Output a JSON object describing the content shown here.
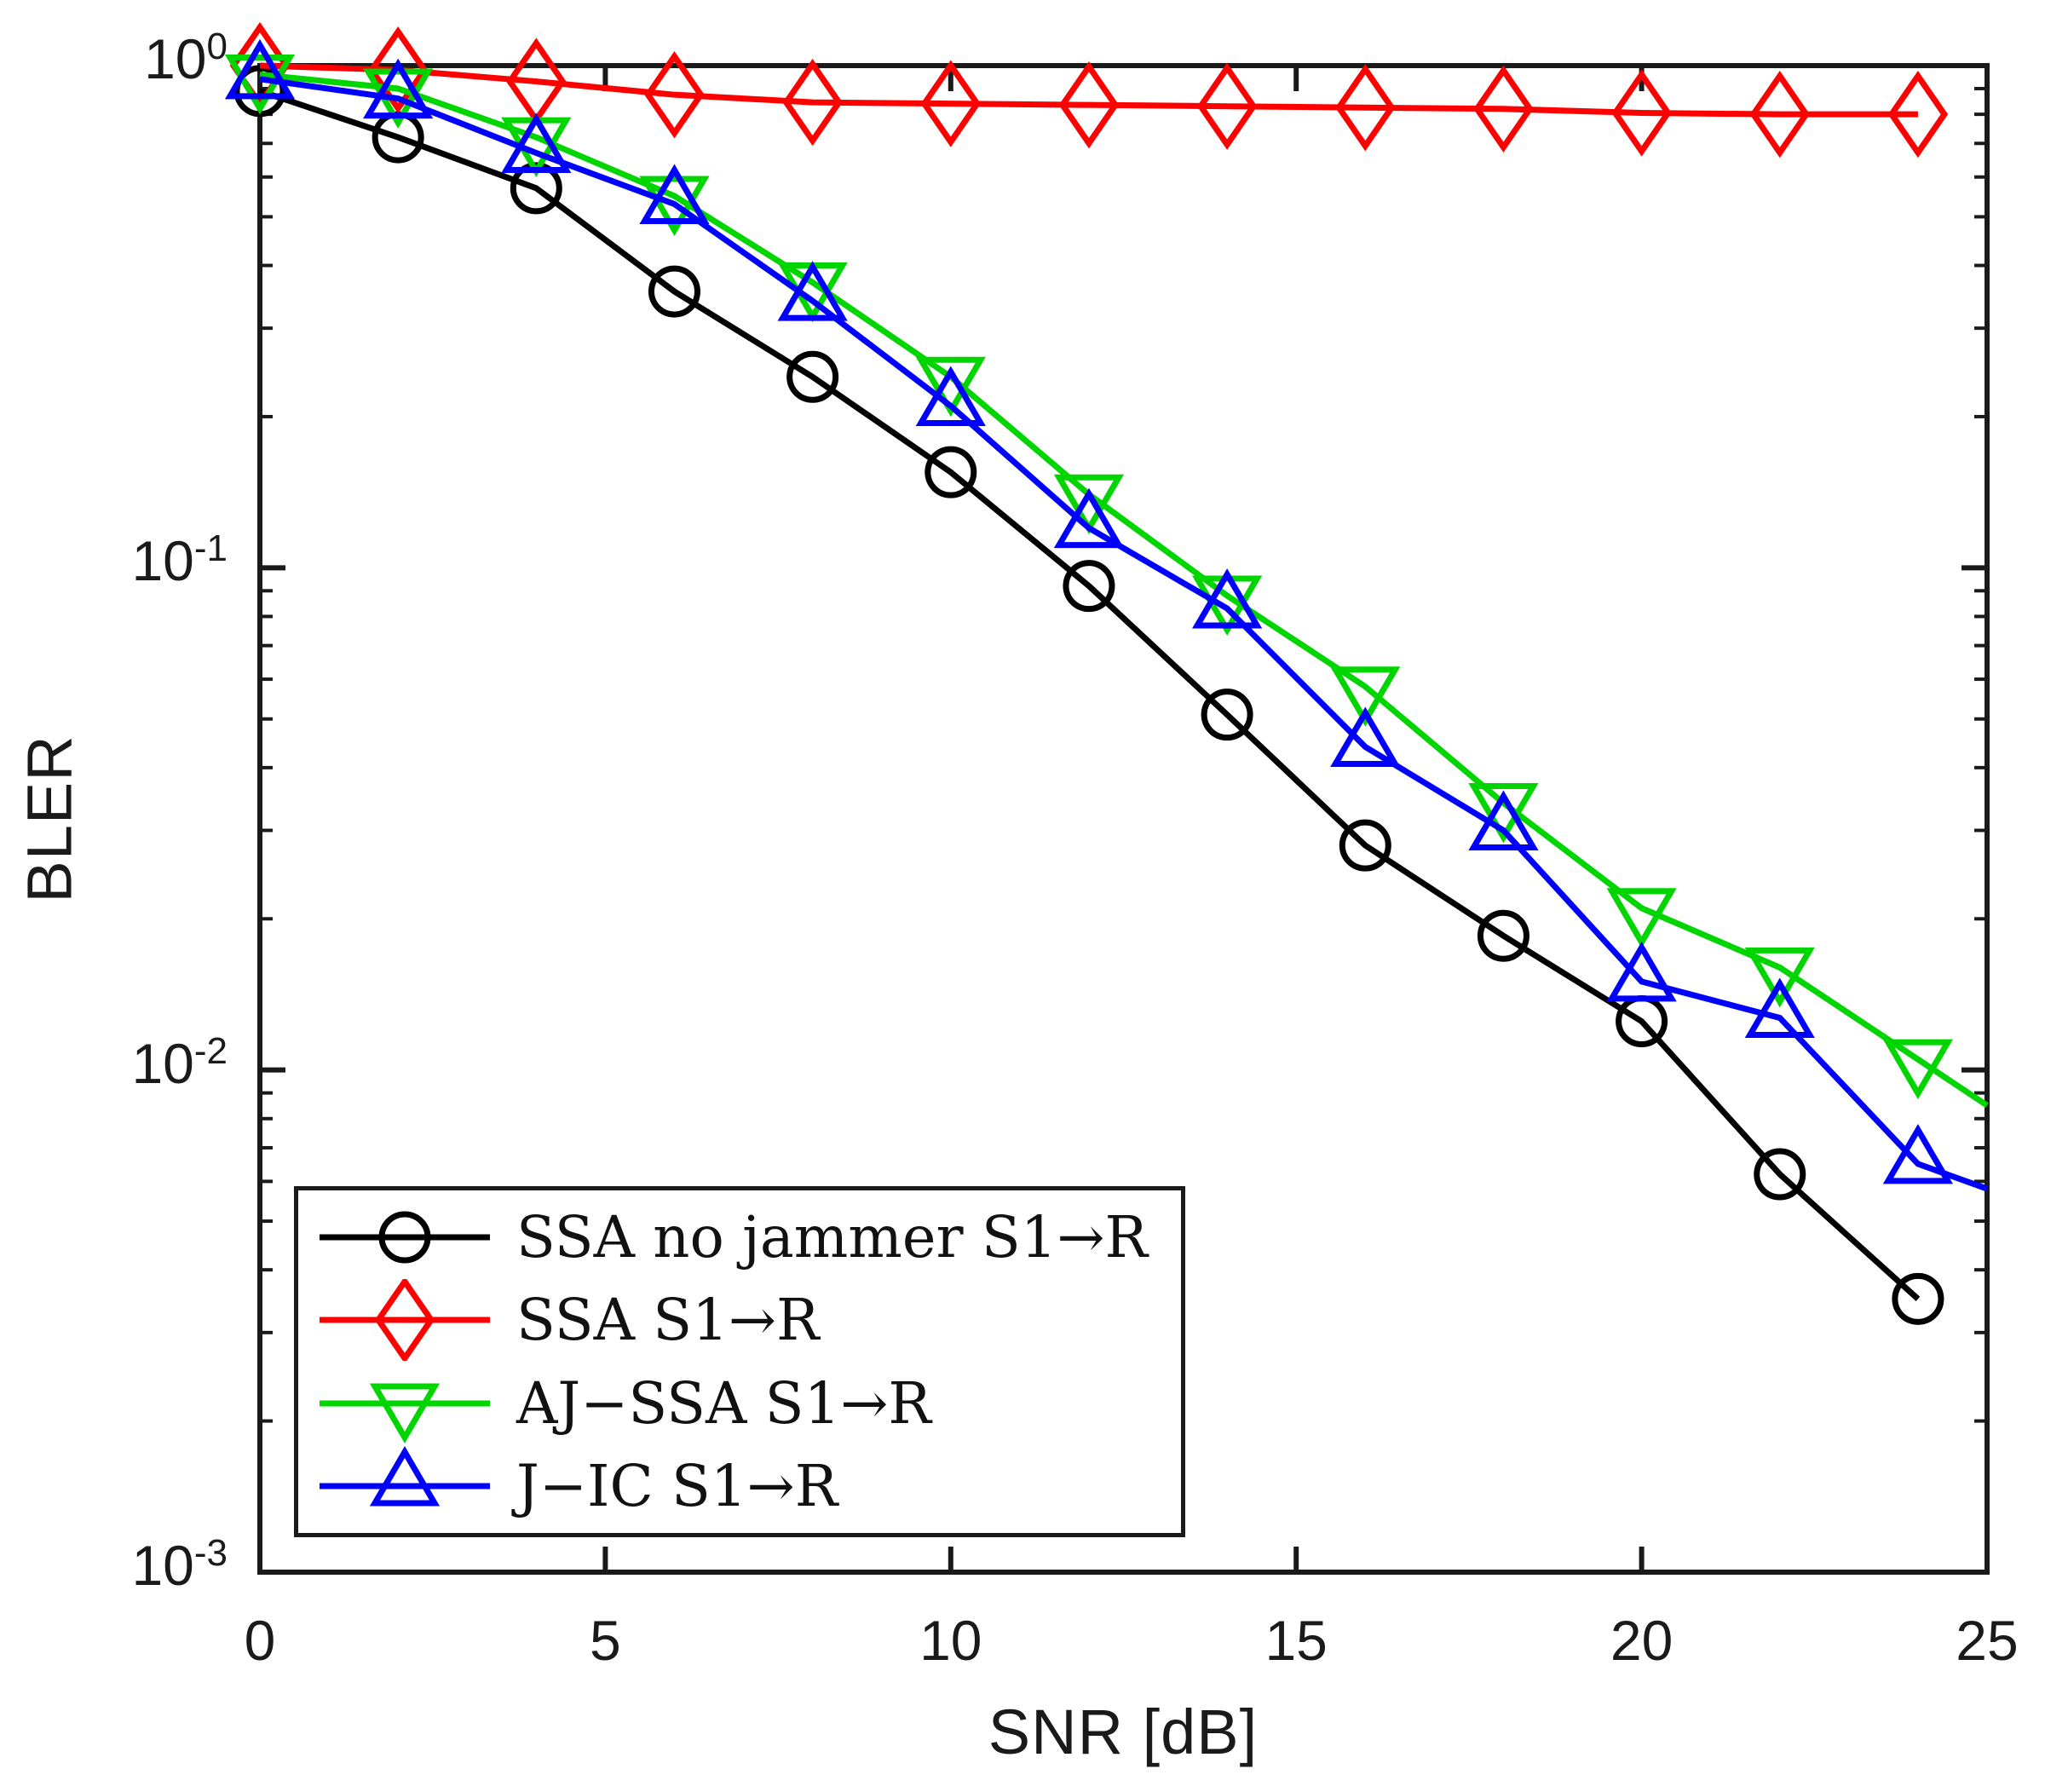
{
  "chart_data": {
    "type": "line",
    "title": "",
    "xlabel": "SNR [dB]",
    "ylabel": "BLER",
    "xlim": [
      0,
      25
    ],
    "ylim": [
      0.001,
      1.0
    ],
    "yscale": "log",
    "grid": false,
    "x_ticks": [
      0,
      5,
      10,
      15,
      20,
      25
    ],
    "y_tick_base": "10",
    "y_tick_exponents": [
      0,
      -1,
      -2,
      -3
    ],
    "legend_position": "lower-left",
    "x": [
      0,
      2,
      4,
      6,
      8,
      10,
      12,
      14,
      16,
      18,
      20,
      22,
      24
    ],
    "series": [
      {
        "name": "SSA no jammer S1→R",
        "color": "#000000",
        "marker": "circle",
        "values": [
          0.89,
          0.72,
          0.57,
          0.355,
          0.24,
          0.155,
          0.092,
          0.051,
          0.028,
          0.0185,
          0.0125,
          0.0062,
          0.0035
        ]
      },
      {
        "name": "SSA S1→R",
        "color": "#ff0000",
        "marker": "diamond",
        "values": [
          1.0,
          0.98,
          0.93,
          0.875,
          0.845,
          0.84,
          0.835,
          0.83,
          0.825,
          0.82,
          0.805,
          0.8,
          0.8
        ]
      },
      {
        "name": "AJ−SSA S1→R",
        "color": "#00d500",
        "marker": "triangle-down",
        "values": [
          0.96,
          0.9,
          0.72,
          0.55,
          0.37,
          0.24,
          0.14,
          0.088,
          0.058,
          0.034,
          0.021,
          0.016,
          0.0105
        ],
        "line_tail": {
          "x": 25,
          "value": 0.0085
        }
      },
      {
        "name": "J−IC S1→R",
        "color": "#0000ff",
        "marker": "triangle-up",
        "values": [
          0.94,
          0.86,
          0.67,
          0.53,
          0.34,
          0.21,
          0.12,
          0.083,
          0.044,
          0.03,
          0.015,
          0.0127,
          0.0065
        ],
        "line_tail": {
          "x": 25,
          "value": 0.0058
        }
      }
    ]
  }
}
